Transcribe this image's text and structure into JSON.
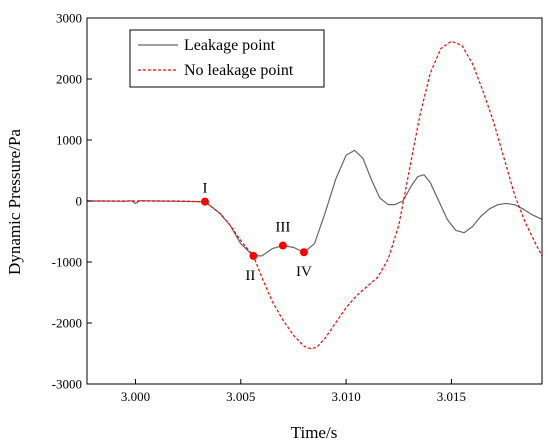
{
  "chart_data": {
    "type": "line",
    "title": "",
    "xlabel": "Time/s",
    "ylabel": "Dynamic Pressure/Pa",
    "xlim": [
      2.9977,
      3.0193
    ],
    "ylim": [
      -3000,
      3000
    ],
    "xticks": [
      3.0,
      3.005,
      3.01,
      3.015
    ],
    "xtick_labels": [
      "3.000",
      "3.005",
      "3.010",
      "3.015"
    ],
    "yticks": [
      -3000,
      -2000,
      -1000,
      0,
      1000,
      2000,
      3000
    ],
    "ytick_labels": [
      "-3000",
      "-2000",
      "-1000",
      "0",
      "1000",
      "2000",
      "3000"
    ],
    "grid": false,
    "legend_position": "top-left",
    "series": [
      {
        "name": "Leakage point",
        "color": "#666666",
        "dash": "solid",
        "x": [
          2.9977,
          2.9985,
          2.9995,
          2.9998,
          3.0,
          3.0002,
          3.001,
          3.002,
          3.003,
          3.0033,
          3.004,
          3.0045,
          3.005,
          3.0056,
          3.006,
          3.0065,
          3.007,
          3.0075,
          3.008,
          3.0085,
          3.009,
          3.0095,
          3.01,
          3.0104,
          3.0108,
          3.0112,
          3.0116,
          3.012,
          3.0123,
          3.0127,
          3.0131,
          3.0134,
          3.0137,
          3.014,
          3.0144,
          3.0148,
          3.0152,
          3.0156,
          3.016,
          3.0164,
          3.0168,
          3.0172,
          3.0176,
          3.018,
          3.0184,
          3.0188,
          3.0193
        ],
        "y": [
          0,
          0,
          -5,
          5,
          -40,
          5,
          0,
          -5,
          -10,
          -10,
          -200,
          -400,
          -700,
          -900,
          -900,
          -780,
          -730,
          -760,
          -840,
          -700,
          -200,
          350,
          750,
          830,
          700,
          350,
          50,
          -60,
          -60,
          0,
          250,
          400,
          430,
          300,
          0,
          -300,
          -480,
          -520,
          -420,
          -250,
          -130,
          -60,
          -40,
          -60,
          -130,
          -220,
          -300
        ]
      },
      {
        "name": "No leakage point",
        "color": "#ff0000",
        "dash": "dashed",
        "x": [
          2.9977,
          2.999,
          3.0,
          3.001,
          3.002,
          3.003,
          3.0033,
          3.004,
          3.0045,
          3.005,
          3.0056,
          3.006,
          3.0065,
          3.007,
          3.0075,
          3.008,
          3.0083,
          3.0086,
          3.009,
          3.0095,
          3.01,
          3.0105,
          3.011,
          3.0115,
          3.012,
          3.0125,
          3.013,
          3.0135,
          3.014,
          3.0145,
          3.015,
          3.0155,
          3.016,
          3.0165,
          3.017,
          3.0175,
          3.018,
          3.0185,
          3.019,
          3.0193
        ],
        "y": [
          0,
          0,
          0,
          0,
          0,
          -10,
          -10,
          -200,
          -400,
          -650,
          -900,
          -1250,
          -1650,
          -1950,
          -2200,
          -2380,
          -2420,
          -2400,
          -2250,
          -2000,
          -1750,
          -1550,
          -1400,
          -1250,
          -950,
          -400,
          500,
          1400,
          2100,
          2500,
          2620,
          2550,
          2250,
          1800,
          1300,
          700,
          100,
          -350,
          -700,
          -900
        ]
      }
    ],
    "markers": [
      {
        "label": "I",
        "x": 3.0033,
        "y": -10,
        "color": "#ff0000"
      },
      {
        "label": "II",
        "x": 3.0056,
        "y": -900,
        "color": "#ff0000"
      },
      {
        "label": "III",
        "x": 3.007,
        "y": -730,
        "color": "#ff0000"
      },
      {
        "label": "IV",
        "x": 3.008,
        "y": -840,
        "color": "#ff0000"
      }
    ]
  }
}
